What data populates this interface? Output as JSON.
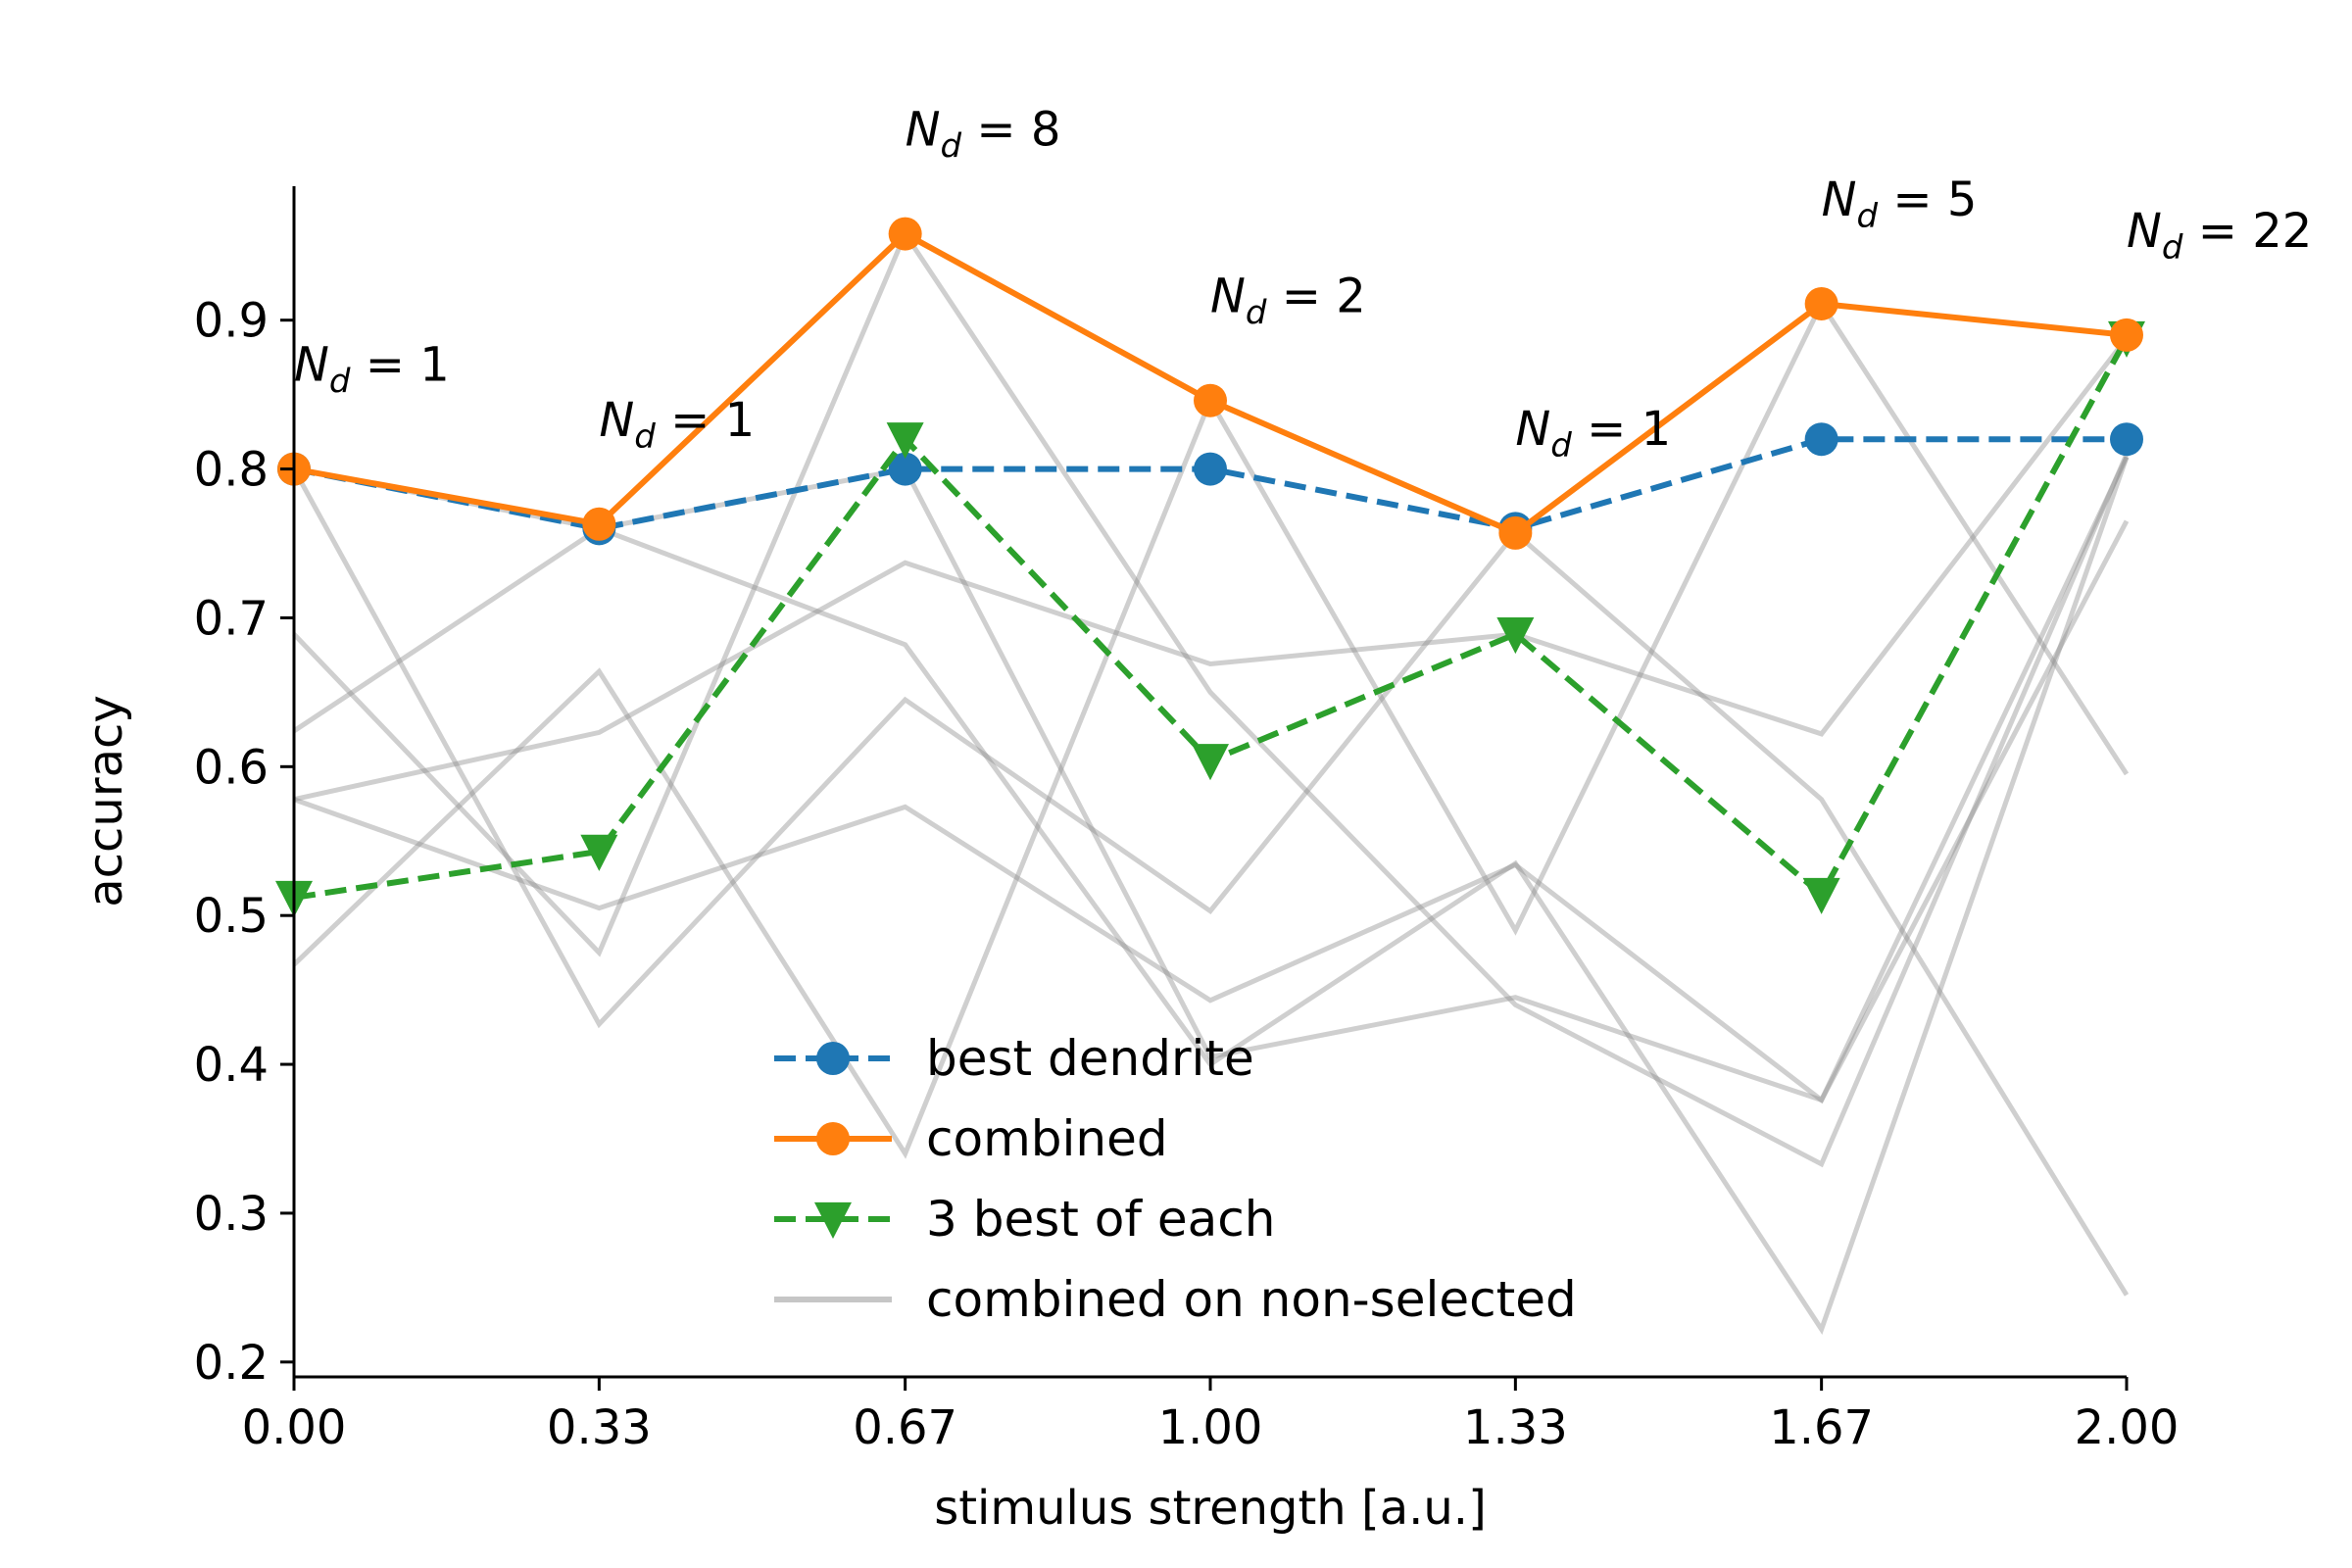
{
  "chart_data": {
    "type": "line",
    "title": "",
    "xlabel": "stimulus strength [a.u.]",
    "ylabel": "accuracy",
    "xlim": [
      0,
      2.0
    ],
    "ylim": [
      0.19,
      0.99
    ],
    "x_ticks": [
      0.0,
      0.333,
      0.667,
      1.0,
      1.333,
      1.667,
      2.0
    ],
    "x_tick_labels": [
      "0.00",
      "0.33",
      "0.67",
      "1.00",
      "1.33",
      "1.67",
      "2.00"
    ],
    "y_ticks": [
      0.2,
      0.3,
      0.4,
      0.5,
      0.6,
      0.7,
      0.8,
      0.9
    ],
    "y_tick_labels": [
      "0.2",
      "0.3",
      "0.4",
      "0.5",
      "0.6",
      "0.7",
      "0.8",
      "0.9"
    ],
    "x": [
      0.0,
      0.333,
      0.667,
      1.0,
      1.333,
      1.667,
      2.0
    ],
    "grid": false,
    "legend_position": "lower-center",
    "series": [
      {
        "name": "best dendrite",
        "values": [
          0.8,
          0.76,
          0.8,
          0.8,
          0.76,
          0.82,
          0.82
        ],
        "color": "#1f77b4",
        "marker": "circle",
        "dash": true
      },
      {
        "name": "combined",
        "values": [
          0.8,
          0.763,
          0.958,
          0.846,
          0.757,
          0.911,
          0.89
        ],
        "color": "#ff7f0e",
        "marker": "circle",
        "dash": false
      },
      {
        "name": "3 best of each",
        "values": [
          0.512,
          0.543,
          0.82,
          0.604,
          0.689,
          0.514,
          0.888
        ],
        "color": "#2ca02c",
        "marker": "triangle-down",
        "dash": true
      },
      {
        "name": "combined on non-selected",
        "color": "#c0c0c0",
        "marker": "none",
        "dash": false
      }
    ],
    "background_lines": [
      [
        0.8,
        0.427,
        0.645,
        0.503,
        0.757,
        0.578,
        0.245
      ],
      [
        0.689,
        0.475,
        0.958,
        0.65,
        0.44,
        0.333,
        0.81
      ],
      [
        0.624,
        0.76,
        0.682,
        0.4,
        0.535,
        0.222,
        0.808
      ],
      [
        0.578,
        0.505,
        0.573,
        0.443,
        0.534,
        0.376,
        0.808
      ],
      [
        0.467,
        0.664,
        0.34,
        0.846,
        0.49,
        0.911,
        0.595
      ],
      [
        0.578,
        0.623,
        0.737,
        0.669,
        0.689,
        0.622,
        0.888
      ],
      [
        0.8,
        0.76,
        0.8,
        0.405,
        0.445,
        0.376,
        0.765
      ]
    ],
    "annotations": [
      {
        "x": 0.0,
        "text_sym": "N",
        "text_sub": "d",
        "text_rest": " = 1"
      },
      {
        "x": 0.333,
        "text_sym": "N",
        "text_sub": "d",
        "text_rest": " = 1"
      },
      {
        "x": 0.667,
        "text_sym": "N",
        "text_sub": "d",
        "text_rest": " = 8"
      },
      {
        "x": 1.0,
        "text_sym": "N",
        "text_sub": "d",
        "text_rest": " = 2"
      },
      {
        "x": 1.333,
        "text_sym": "N",
        "text_sub": "d",
        "text_rest": " = 1"
      },
      {
        "x": 1.667,
        "text_sym": "N",
        "text_sub": "d",
        "text_rest": " = 5"
      },
      {
        "x": 2.0,
        "text_sym": "N",
        "text_sub": "d",
        "text_rest": " = 22"
      }
    ]
  }
}
